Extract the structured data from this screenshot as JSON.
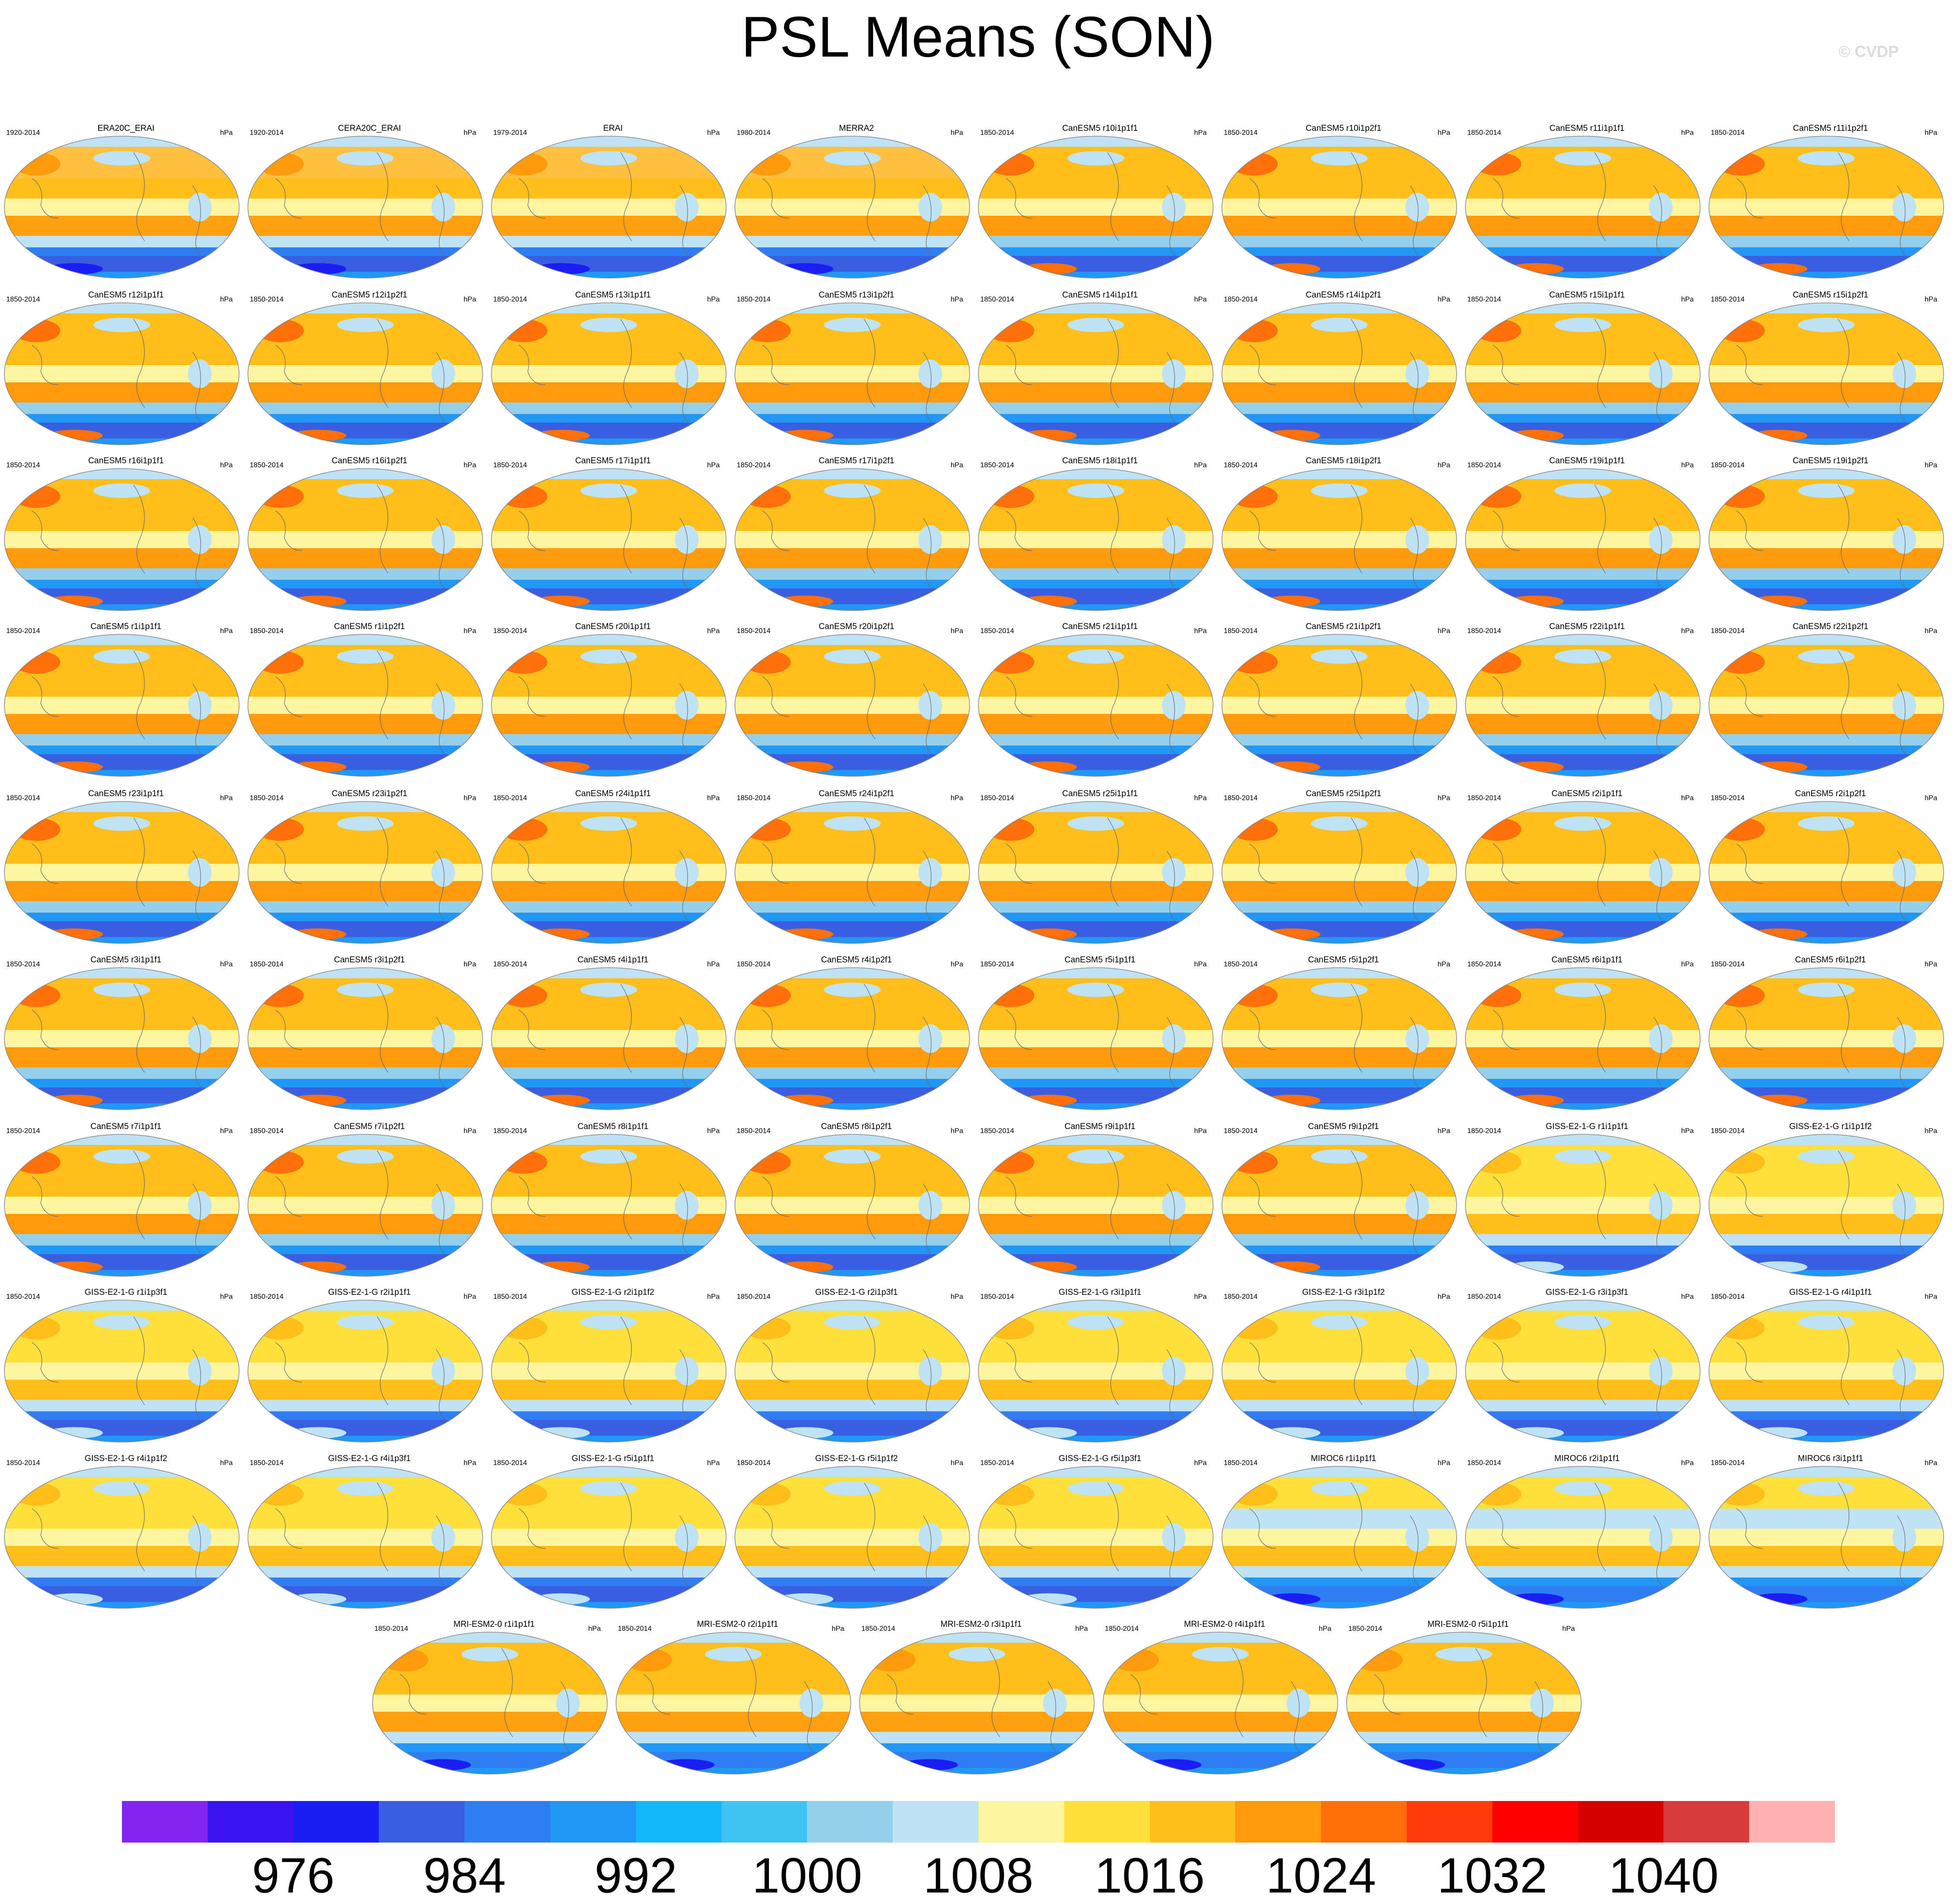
{
  "title": "PSL Means (SON)",
  "copyright": "© CVDP",
  "units": "hPa",
  "colorbar": {
    "colors": [
      "#8424f0",
      "#3a14f0",
      "#1a1ef4",
      "#3a5ee0",
      "#2f7df0",
      "#2196f5",
      "#12b8f8",
      "#3ec3f2",
      "#94cfed",
      "#bde3f5",
      "#fff5a0",
      "#ffdf3c",
      "#ffbf1a",
      "#ff9a0c",
      "#ff6f0a",
      "#ff3a0a",
      "#ff0000",
      "#d40000",
      "#d63a3a",
      "#ffb0b0"
    ],
    "label_values": [
      "976",
      "984",
      "992",
      "1000",
      "1008",
      "1016",
      "1024",
      "1032",
      "1040"
    ]
  },
  "chart_data": {
    "type": "heatmap",
    "title": "PSL Means (SON)",
    "variable": "PSL",
    "season": "SON",
    "units": "hPa",
    "contour_levels": [
      972,
      976,
      980,
      984,
      988,
      992,
      996,
      1000,
      1004,
      1008,
      1012,
      1016,
      1020,
      1024,
      1028,
      1032,
      1036,
      1040,
      1044
    ],
    "panels": [
      {
        "name": "ERA20C_ERAI",
        "period": "1920-2014"
      },
      {
        "name": "CERA20C_ERAI",
        "period": "1920-2014"
      },
      {
        "name": "ERAI",
        "period": "1979-2014"
      },
      {
        "name": "MERRA2",
        "period": "1980-2014"
      },
      {
        "name": "CanESM5 r10i1p1f1",
        "period": "1850-2014"
      },
      {
        "name": "CanESM5 r10i1p2f1",
        "period": "1850-2014"
      },
      {
        "name": "CanESM5 r11i1p1f1",
        "period": "1850-2014"
      },
      {
        "name": "CanESM5 r11i1p2f1",
        "period": "1850-2014"
      },
      {
        "name": "CanESM5 r12i1p1f1",
        "period": "1850-2014"
      },
      {
        "name": "CanESM5 r12i1p2f1",
        "period": "1850-2014"
      },
      {
        "name": "CanESM5 r13i1p1f1",
        "period": "1850-2014"
      },
      {
        "name": "CanESM5 r13i1p2f1",
        "period": "1850-2014"
      },
      {
        "name": "CanESM5 r14i1p1f1",
        "period": "1850-2014"
      },
      {
        "name": "CanESM5 r14i1p2f1",
        "period": "1850-2014"
      },
      {
        "name": "CanESM5 r15i1p1f1",
        "period": "1850-2014"
      },
      {
        "name": "CanESM5 r15i1p2f1",
        "period": "1850-2014"
      },
      {
        "name": "CanESM5 r16i1p1f1",
        "period": "1850-2014"
      },
      {
        "name": "CanESM5 r16i1p2f1",
        "period": "1850-2014"
      },
      {
        "name": "CanESM5 r17i1p1f1",
        "period": "1850-2014"
      },
      {
        "name": "CanESM5 r17i1p2f1",
        "period": "1850-2014"
      },
      {
        "name": "CanESM5 r18i1p1f1",
        "period": "1850-2014"
      },
      {
        "name": "CanESM5 r18i1p2f1",
        "period": "1850-2014"
      },
      {
        "name": "CanESM5 r19i1p1f1",
        "period": "1850-2014"
      },
      {
        "name": "CanESM5 r19i1p2f1",
        "period": "1850-2014"
      },
      {
        "name": "CanESM5 r1i1p1f1",
        "period": "1850-2014"
      },
      {
        "name": "CanESM5 r1i1p2f1",
        "period": "1850-2014"
      },
      {
        "name": "CanESM5 r20i1p1f1",
        "period": "1850-2014"
      },
      {
        "name": "CanESM5 r20i1p2f1",
        "period": "1850-2014"
      },
      {
        "name": "CanESM5 r21i1p1f1",
        "period": "1850-2014"
      },
      {
        "name": "CanESM5 r21i1p2f1",
        "period": "1850-2014"
      },
      {
        "name": "CanESM5 r22i1p1f1",
        "period": "1850-2014"
      },
      {
        "name": "CanESM5 r22i1p2f1",
        "period": "1850-2014"
      },
      {
        "name": "CanESM5 r23i1p1f1",
        "period": "1850-2014"
      },
      {
        "name": "CanESM5 r23i1p2f1",
        "period": "1850-2014"
      },
      {
        "name": "CanESM5 r24i1p1f1",
        "period": "1850-2014"
      },
      {
        "name": "CanESM5 r24i1p2f1",
        "period": "1850-2014"
      },
      {
        "name": "CanESM5 r25i1p1f1",
        "period": "1850-2014"
      },
      {
        "name": "CanESM5 r25i1p2f1",
        "period": "1850-2014"
      },
      {
        "name": "CanESM5 r2i1p1f1",
        "period": "1850-2014"
      },
      {
        "name": "CanESM5 r2i1p2f1",
        "period": "1850-2014"
      },
      {
        "name": "CanESM5 r3i1p1f1",
        "period": "1850-2014"
      },
      {
        "name": "CanESM5 r3i1p2f1",
        "period": "1850-2014"
      },
      {
        "name": "CanESM5 r4i1p1f1",
        "period": "1850-2014"
      },
      {
        "name": "CanESM5 r4i1p2f1",
        "period": "1850-2014"
      },
      {
        "name": "CanESM5 r5i1p1f1",
        "period": "1850-2014"
      },
      {
        "name": "CanESM5 r5i1p2f1",
        "period": "1850-2014"
      },
      {
        "name": "CanESM5 r6i1p1f1",
        "period": "1850-2014"
      },
      {
        "name": "CanESM5 r6i1p2f1",
        "period": "1850-2014"
      },
      {
        "name": "CanESM5 r7i1p1f1",
        "period": "1850-2014"
      },
      {
        "name": "CanESM5 r7i1p2f1",
        "period": "1850-2014"
      },
      {
        "name": "CanESM5 r8i1p1f1",
        "period": "1850-2014"
      },
      {
        "name": "CanESM5 r8i1p2f1",
        "period": "1850-2014"
      },
      {
        "name": "CanESM5 r9i1p1f1",
        "period": "1850-2014"
      },
      {
        "name": "CanESM5 r9i1p2f1",
        "period": "1850-2014"
      },
      {
        "name": "GISS-E2-1-G r1i1p1f1",
        "period": "1850-2014"
      },
      {
        "name": "GISS-E2-1-G r1i1p1f2",
        "period": "1850-2014"
      },
      {
        "name": "GISS-E2-1-G r1i1p3f1",
        "period": "1850-2014"
      },
      {
        "name": "GISS-E2-1-G r2i1p1f1",
        "period": "1850-2014"
      },
      {
        "name": "GISS-E2-1-G r2i1p1f2",
        "period": "1850-2014"
      },
      {
        "name": "GISS-E2-1-G r2i1p3f1",
        "period": "1850-2014"
      },
      {
        "name": "GISS-E2-1-G r3i1p1f1",
        "period": "1850-2014"
      },
      {
        "name": "GISS-E2-1-G r3i1p1f2",
        "period": "1850-2014"
      },
      {
        "name": "GISS-E2-1-G r3i1p3f1",
        "period": "1850-2014"
      },
      {
        "name": "GISS-E2-1-G r4i1p1f1",
        "period": "1850-2014"
      },
      {
        "name": "GISS-E2-1-G r4i1p1f2",
        "period": "1850-2014"
      },
      {
        "name": "GISS-E2-1-G r4i1p3f1",
        "period": "1850-2014"
      },
      {
        "name": "GISS-E2-1-G r5i1p1f1",
        "period": "1850-2014"
      },
      {
        "name": "GISS-E2-1-G r5i1p1f2",
        "period": "1850-2014"
      },
      {
        "name": "GISS-E2-1-G r5i1p3f1",
        "period": "1850-2014"
      },
      {
        "name": "MIROC6 r1i1p1f1",
        "period": "1850-2014"
      },
      {
        "name": "MIROC6 r2i1p1f1",
        "period": "1850-2014"
      },
      {
        "name": "MIROC6 r3i1p1f1",
        "period": "1850-2014"
      },
      {
        "name": "MRI-ESM2-0 r1i1p1f1",
        "period": "1850-2014"
      },
      {
        "name": "MRI-ESM2-0 r2i1p1f1",
        "period": "1850-2014"
      },
      {
        "name": "MRI-ESM2-0 r3i1p1f1",
        "period": "1850-2014"
      },
      {
        "name": "MRI-ESM2-0 r4i1p1f1",
        "period": "1850-2014"
      },
      {
        "name": "MRI-ESM2-0 r5i1p1f1",
        "period": "1850-2014"
      }
    ]
  }
}
